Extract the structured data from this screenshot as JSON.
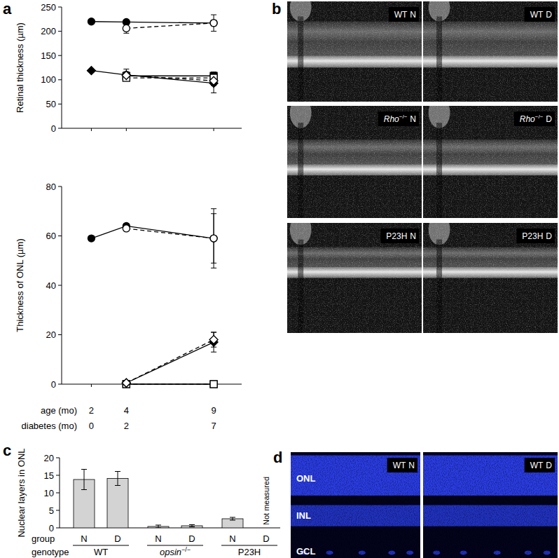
{
  "panel_labels": [
    "a",
    "b",
    "c",
    "d"
  ],
  "chart_data": [
    {
      "type": "line",
      "ylabel": "Retinal thickness (µm)",
      "x": [
        2,
        4,
        9
      ],
      "xlim": [
        0.3,
        10.6
      ],
      "xticks": [
        2,
        4,
        9
      ],
      "ylim": [
        0,
        250
      ],
      "yticks": [
        0,
        50,
        100,
        150,
        200,
        250
      ],
      "tick_labels": "y",
      "series": [
        {
          "color": "#000000",
          "marker": "filled-circle",
          "line_style": "solid",
          "values": [
            220,
            219,
            217
          ],
          "errors": [
            2,
            2,
            6
          ]
        },
        {
          "color": "#000000",
          "marker": "open-circle",
          "line_style": "dashed",
          "values": [
            null,
            206,
            217
          ],
          "errors": [
            null,
            10,
            17
          ]
        },
        {
          "color": "#000000",
          "marker": "filled-square",
          "line_style": "solid",
          "values": [
            null,
            108,
            108
          ],
          "errors": [
            null,
            6,
            8
          ]
        },
        {
          "color": "#000000",
          "marker": "open-square",
          "line_style": "dashed",
          "values": [
            null,
            104,
            104
          ],
          "errors": [
            null,
            6,
            6
          ]
        },
        {
          "color": "#000000",
          "marker": "filled-diamond",
          "line_style": "solid",
          "values": [
            119,
            110,
            93
          ],
          "errors": [
            2,
            12,
            20
          ]
        },
        {
          "color": "#000000",
          "marker": "open-diamond",
          "line_style": "dashed",
          "values": [
            null,
            109,
            98
          ],
          "errors": [
            null,
            8,
            10
          ]
        }
      ]
    },
    {
      "type": "line",
      "ylabel": "Thickness of ONL (µm)",
      "xlabel": "age (mo)",
      "x2label": "diabetes (mo)",
      "x": [
        2,
        4,
        9
      ],
      "xlim": [
        0.3,
        10.6
      ],
      "xticks": [
        2,
        4,
        9
      ],
      "x2ticks": [
        {
          "value": 2,
          "label": "0"
        },
        {
          "value": 4,
          "label": "2"
        },
        {
          "value": 9,
          "label": "7"
        }
      ],
      "ylim": [
        0,
        80
      ],
      "yticks": [
        0,
        20,
        40,
        60,
        80
      ],
      "series": [
        {
          "color": "#000000",
          "marker": "filled-circle",
          "line_style": "solid",
          "values": [
            59,
            64,
            59
          ],
          "errors": [
            1,
            1,
            12
          ]
        },
        {
          "color": "#000000",
          "marker": "open-circle",
          "line_style": "dashed",
          "values": [
            null,
            63,
            59
          ],
          "errors": [
            null,
            1,
            10
          ]
        },
        {
          "color": "#000000",
          "marker": "filled-square",
          "line_style": "solid",
          "values": [
            null,
            0,
            0
          ],
          "errors": [
            null,
            0.3,
            0.3
          ]
        },
        {
          "color": "#000000",
          "marker": "open-square",
          "line_style": "dashed",
          "values": [
            null,
            0,
            0
          ],
          "errors": [
            null,
            0.3,
            0.3
          ]
        },
        {
          "color": "#000000",
          "marker": "filled-diamond",
          "line_style": "solid",
          "values": [
            null,
            0.5,
            17
          ],
          "errors": [
            null,
            0.5,
            4
          ]
        },
        {
          "color": "#000000",
          "marker": "open-diamond",
          "line_style": "dashed",
          "values": [
            null,
            0.5,
            18
          ],
          "errors": [
            null,
            0.5,
            3
          ]
        }
      ]
    },
    {
      "type": "bar",
      "ylabel": "Nuclear layers in ONL",
      "categories": [
        "N",
        "D",
        "N",
        "D",
        "N",
        "D"
      ],
      "values": [
        13.8,
        14.1,
        0.4,
        0.6,
        2.6,
        null
      ],
      "errors": [
        2.9,
        2.0,
        0.4,
        0.3,
        0.4,
        null
      ],
      "color": "#d3d3d3",
      "ylim": [
        0,
        20
      ],
      "yticks": [
        0,
        5,
        10,
        15,
        20
      ],
      "category_row_label": "group",
      "genotype_row_label": "genotype",
      "genotypes": [
        {
          "name": "WT",
          "span": [
            0,
            1
          ]
        },
        {
          "name": "opsin",
          "sup": "−/−",
          "span": [
            2,
            3
          ]
        },
        {
          "name": "P23H",
          "span": [
            4,
            5
          ]
        }
      ],
      "annotation": "Not measured"
    }
  ],
  "oct_images": [
    {
      "genotype": "WT",
      "group": "N"
    },
    {
      "genotype": "WT",
      "group": "D"
    },
    {
      "genotype": "Rho",
      "sup": "−/−",
      "group": "N"
    },
    {
      "genotype": "Rho",
      "sup": "−/−",
      "group": "D"
    },
    {
      "genotype": "P23H",
      "group": "N"
    },
    {
      "genotype": "P23H",
      "group": "D"
    }
  ],
  "histology": {
    "images": [
      {
        "genotype": "WT",
        "group": "N"
      },
      {
        "genotype": "WT",
        "group": "D"
      }
    ],
    "layers": [
      "ONL",
      "INL",
      "GCL"
    ]
  }
}
